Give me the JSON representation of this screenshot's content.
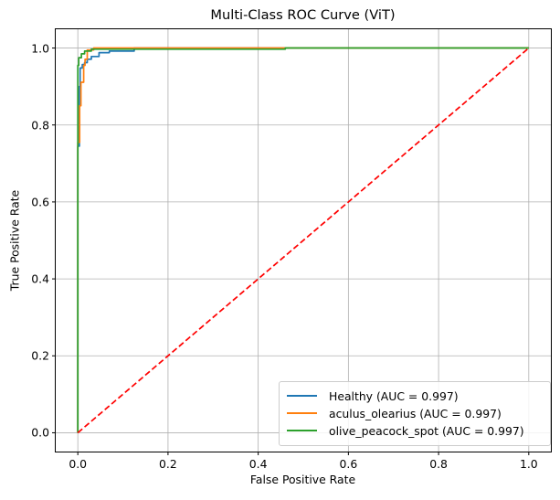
{
  "figure": {
    "background": "#ffffff"
  },
  "chart_data": {
    "type": "line",
    "title": "Multi-Class ROC Curve (ViT)",
    "xlabel": "False Positive Rate",
    "ylabel": "True Positive Rate",
    "xlim": [
      -0.05,
      1.05
    ],
    "ylim": [
      -0.05,
      1.05
    ],
    "x_ticks": [
      0.0,
      0.2,
      0.4,
      0.6,
      0.8,
      1.0
    ],
    "y_ticks": [
      0.0,
      0.2,
      0.4,
      0.6,
      0.8,
      1.0
    ],
    "x_tick_labels": [
      "0.0",
      "0.2",
      "0.4",
      "0.6",
      "0.8",
      "1.0"
    ],
    "y_tick_labels": [
      "0.0",
      "0.2",
      "0.4",
      "0.6",
      "0.8",
      "1.0"
    ],
    "grid": true,
    "grid_color": "#b0b0b0",
    "spine_color": "#000000",
    "legend_position": "lower right",
    "series": [
      {
        "name": "Healthy",
        "legend_label": "Healthy (AUC = 0.997)",
        "auc": 0.997,
        "color": "#1f77b4",
        "points": [
          [
            0,
            0
          ],
          [
            0,
            0.745
          ],
          [
            0.0035,
            0.745
          ],
          [
            0.0035,
            0.9
          ],
          [
            0.005,
            0.9
          ],
          [
            0.005,
            0.948
          ],
          [
            0.01,
            0.948
          ],
          [
            0.01,
            0.957
          ],
          [
            0.015,
            0.957
          ],
          [
            0.015,
            0.962
          ],
          [
            0.021,
            0.962
          ],
          [
            0.021,
            0.971
          ],
          [
            0.03,
            0.971
          ],
          [
            0.03,
            0.978
          ],
          [
            0.047,
            0.978
          ],
          [
            0.047,
            0.988
          ],
          [
            0.07,
            0.988
          ],
          [
            0.07,
            0.992
          ],
          [
            0.125,
            0.992
          ],
          [
            0.125,
            1
          ],
          [
            1,
            1
          ]
        ]
      },
      {
        "name": "aculus_olearius",
        "legend_label": "aculus_olearius (AUC = 0.997)",
        "auc": 0.997,
        "color": "#ff7f0e",
        "points": [
          [
            0,
            0
          ],
          [
            0,
            0.755
          ],
          [
            0.004,
            0.755
          ],
          [
            0.004,
            0.85
          ],
          [
            0.007,
            0.85
          ],
          [
            0.007,
            0.911
          ],
          [
            0.013,
            0.911
          ],
          [
            0.013,
            0.955
          ],
          [
            0.016,
            0.955
          ],
          [
            0.016,
            0.971
          ],
          [
            0.021,
            0.971
          ],
          [
            0.021,
            0.995
          ],
          [
            0.035,
            0.995
          ],
          [
            0.035,
            1
          ],
          [
            1,
            1
          ]
        ]
      },
      {
        "name": "olive_peacock_spot",
        "legend_label": "olive_peacock_spot (AUC = 0.997)",
        "auc": 0.997,
        "color": "#2ca02c",
        "points": [
          [
            0,
            0
          ],
          [
            0,
            0.955
          ],
          [
            0.002,
            0.955
          ],
          [
            0.002,
            0.975
          ],
          [
            0.008,
            0.975
          ],
          [
            0.008,
            0.985
          ],
          [
            0.015,
            0.985
          ],
          [
            0.015,
            0.992
          ],
          [
            0.03,
            0.992
          ],
          [
            0.03,
            0.997
          ],
          [
            0.46,
            0.997
          ],
          [
            0.46,
            1
          ],
          [
            1,
            1
          ]
        ]
      }
    ],
    "reference_line": {
      "name": "chance-diagonal",
      "color": "#ff0000",
      "style": "dashed",
      "points": [
        [
          0,
          0
        ],
        [
          1,
          1
        ]
      ]
    }
  }
}
